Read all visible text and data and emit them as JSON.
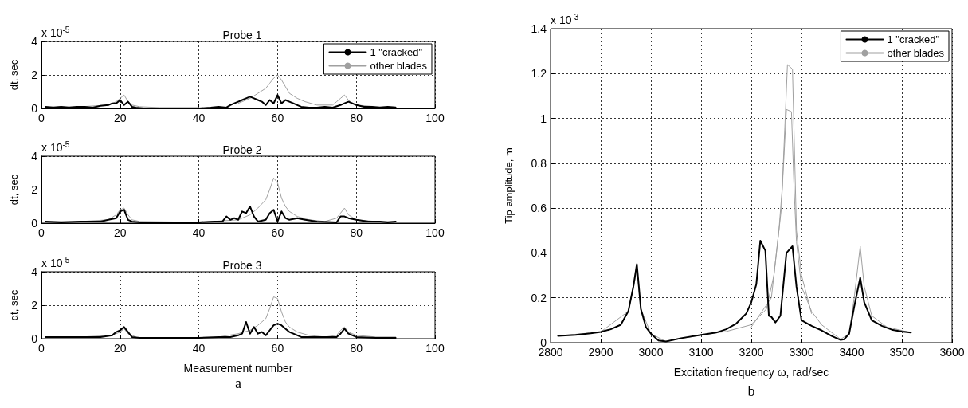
{
  "chart_data": [
    {
      "type": "line",
      "title": "Probe 1",
      "ylabel": "dt, sec",
      "annotations": [
        "x 10$^{-5}$"
      ],
      "xlim": [
        0,
        100
      ],
      "xticks": [
        0,
        20,
        40,
        60,
        80,
        100
      ],
      "ylim": [
        0,
        4
      ],
      "yticks": [
        0,
        2,
        4
      ],
      "grid": true,
      "legend": "top right",
      "marker": "none",
      "line_style": "solid",
      "series": [
        {
          "name": "1 \"cracked\"",
          "color": "#000000",
          "x": [
            1,
            3,
            5,
            7,
            9,
            11,
            13,
            15,
            17,
            18,
            19,
            20,
            21,
            22,
            23,
            24,
            26,
            30,
            35,
            40,
            43,
            45,
            47,
            48,
            49,
            50,
            51,
            52,
            53,
            54,
            55,
            56,
            57,
            58,
            59,
            60,
            61,
            62,
            63,
            64,
            65,
            66,
            68,
            70,
            72,
            74,
            76,
            77,
            78,
            79,
            80,
            82,
            84,
            86,
            88,
            90
          ],
          "values": [
            0.1,
            0.05,
            0.1,
            0.05,
            0.1,
            0.1,
            0.05,
            0.15,
            0.2,
            0.3,
            0.3,
            0.5,
            0.2,
            0.4,
            0.1,
            0.05,
            0,
            0,
            0,
            0,
            0.05,
            0.1,
            0.05,
            0.2,
            0.3,
            0.4,
            0.5,
            0.6,
            0.7,
            0.6,
            0.5,
            0.4,
            0.2,
            0.5,
            0.3,
            0.8,
            0.3,
            0.5,
            0.4,
            0.3,
            0.2,
            0.1,
            0.05,
            0.05,
            0.1,
            0.05,
            0.2,
            0.3,
            0.4,
            0.3,
            0.2,
            0.1,
            0.1,
            0.05,
            0.1,
            0.05
          ]
        },
        {
          "name": "other blades",
          "color": "#a0a0a0",
          "x": [
            1,
            10,
            17,
            19,
            20,
            21,
            22,
            23,
            25,
            30,
            40,
            45,
            50,
            53,
            55,
            57,
            58,
            59,
            60,
            61,
            62,
            63,
            65,
            67,
            70,
            74,
            75,
            76,
            77,
            78,
            79,
            80,
            85,
            90
          ],
          "values": [
            0.1,
            0.1,
            0.2,
            0.4,
            0.6,
            0.8,
            0.4,
            0.2,
            0.1,
            0.05,
            0.05,
            null,
            0.3,
            0.6,
            0.9,
            1.2,
            1.5,
            1.8,
            2.0,
            1.7,
            1.3,
            0.9,
            0.6,
            0.4,
            0.2,
            0.2,
            0.4,
            0.6,
            0.8,
            0.5,
            0.3,
            0.2,
            0.1,
            0.1
          ]
        }
      ]
    },
    {
      "type": "line",
      "title": "Probe 2",
      "ylabel": "dt, sec",
      "annotations": [
        "x 10$^{-5}$"
      ],
      "xlim": [
        0,
        100
      ],
      "xticks": [
        0,
        20,
        40,
        60,
        80,
        100
      ],
      "ylim": [
        0,
        4
      ],
      "yticks": [
        0,
        2,
        4
      ],
      "grid": true,
      "marker": "none",
      "line_style": "solid",
      "series": [
        {
          "color": "#000000",
          "x": [
            1,
            5,
            10,
            15,
            17,
            18,
            19,
            20,
            21,
            22,
            23,
            25,
            30,
            35,
            40,
            44,
            46,
            47,
            48,
            49,
            50,
            51,
            52,
            53,
            54,
            55,
            57,
            58,
            59,
            60,
            61,
            62,
            63,
            65,
            67,
            70,
            75,
            76,
            77,
            78,
            80,
            83,
            86,
            88,
            90
          ],
          "values": [
            0.1,
            0.05,
            0.1,
            0.1,
            0.2,
            0.25,
            0.3,
            0.7,
            0.8,
            0.2,
            0.1,
            0.05,
            0.05,
            0.05,
            0.05,
            0.1,
            0.1,
            0.4,
            0.2,
            0.3,
            0.2,
            0.7,
            0.6,
            1.0,
            0.4,
            0.1,
            0.2,
            0.6,
            0.8,
            0.1,
            0.7,
            0.3,
            0.2,
            0.3,
            0.2,
            0.1,
            0.05,
            0.4,
            0.4,
            0.3,
            0.2,
            0.1,
            0.1,
            0.05,
            0.1
          ]
        },
        {
          "color": "#a0a0a0",
          "x": [
            1,
            10,
            17,
            19,
            20,
            21,
            22,
            23,
            25,
            40,
            50,
            53,
            55,
            57,
            58,
            59,
            60,
            61,
            62,
            63,
            65,
            68,
            72,
            75,
            76,
            77,
            78,
            80,
            85,
            90
          ],
          "values": [
            0.1,
            0.1,
            0.2,
            0.5,
            0.8,
            0.9,
            0.5,
            0.2,
            0.1,
            0.05,
            0.2,
            0.5,
            0.9,
            1.4,
            2.0,
            2.7,
            2.4,
            1.5,
            1.0,
            0.7,
            0.4,
            0.2,
            0.1,
            0.3,
            0.6,
            0.9,
            0.5,
            0.2,
            0.1,
            0.1
          ]
        }
      ]
    },
    {
      "type": "line",
      "title": "Probe 3",
      "xlabel": "Measurement number",
      "ylabel": "dt, sec",
      "annotations": [
        "x 10$^{-5}$",
        "a"
      ],
      "xlim": [
        0,
        100
      ],
      "xticks": [
        0,
        20,
        40,
        60,
        80,
        100
      ],
      "ylim": [
        0,
        4
      ],
      "yticks": [
        0,
        2,
        4
      ],
      "grid": true,
      "marker": "none",
      "line_style": "solid",
      "series": [
        {
          "color": "#000000",
          "x": [
            1,
            5,
            10,
            15,
            18,
            19,
            20,
            21,
            22,
            23,
            25,
            30,
            40,
            45,
            48,
            50,
            51,
            52,
            53,
            54,
            55,
            56,
            57,
            58,
            59,
            60,
            61,
            62,
            63,
            64,
            66,
            70,
            75,
            76,
            77,
            78,
            80,
            85,
            90
          ],
          "values": [
            0.1,
            0.1,
            0.1,
            0.1,
            0.2,
            0.4,
            0.5,
            0.7,
            0.4,
            0.1,
            0.05,
            0.05,
            0.05,
            0.1,
            0.1,
            0.2,
            0.3,
            1.0,
            0.3,
            0.7,
            0.3,
            0.4,
            0.2,
            0.5,
            0.8,
            0.9,
            0.8,
            0.6,
            0.4,
            0.3,
            0.1,
            0.1,
            0.1,
            0.3,
            0.6,
            0.3,
            0.1,
            0.05,
            0.05
          ]
        },
        {
          "color": "#a0a0a0",
          "x": [
            1,
            10,
            18,
            20,
            21,
            22,
            24,
            30,
            45,
            50,
            53,
            55,
            57,
            58,
            59,
            60,
            61,
            62,
            63,
            65,
            68,
            72,
            75,
            76,
            77,
            78,
            80,
            85,
            90
          ],
          "values": [
            0.1,
            0.1,
            0.2,
            0.4,
            0.6,
            0.3,
            0.1,
            null,
            0.1,
            0.3,
            0.5,
            0.8,
            1.2,
            1.8,
            2.5,
            2.4,
            1.6,
            1.0,
            0.7,
            0.4,
            0.2,
            0.1,
            0.2,
            0.5,
            0.7,
            0.4,
            0.2,
            0.1,
            0.1
          ]
        }
      ]
    },
    {
      "type": "line",
      "xlabel": "Excitation frequency ω, rad/sec",
      "ylabel": "Tip amplitude, m",
      "annotations": [
        "x 10$^{-3}$",
        "b"
      ],
      "xlim": [
        2800,
        3600
      ],
      "xticks": [
        2800,
        2900,
        3000,
        3100,
        3200,
        3300,
        3400,
        3500,
        3600
      ],
      "ylim": [
        0,
        1.4
      ],
      "yticks": [
        0,
        0.2,
        0.4,
        0.6,
        0.8,
        1,
        1.2,
        1.4
      ],
      "grid": true,
      "legend": "top right",
      "marker": "none",
      "line_style": "solid",
      "series": [
        {
          "name": "1 \"cracked\"",
          "color": "#000000",
          "x": [
            2815,
            2850,
            2880,
            2900,
            2920,
            2940,
            2955,
            2965,
            2972,
            2980,
            2990,
            3000,
            3015,
            3030,
            3060,
            3100,
            3130,
            3150,
            3170,
            3190,
            3200,
            3210,
            3218,
            3228,
            3235,
            3240,
            3248,
            3258,
            3270,
            3282,
            3290,
            3300,
            3320,
            3340,
            3360,
            3378,
            3385,
            3395,
            3405,
            3417,
            3425,
            3440,
            3460,
            3480,
            3500,
            3518
          ],
          "values": [
            0.03,
            0.035,
            0.042,
            0.048,
            0.06,
            0.08,
            0.14,
            0.25,
            0.35,
            0.15,
            0.07,
            0.04,
            0.01,
            0.005,
            0.02,
            0.035,
            0.045,
            0.06,
            0.085,
            0.13,
            0.18,
            0.26,
            0.455,
            0.41,
            0.12,
            0.115,
            0.09,
            0.12,
            0.4,
            0.43,
            0.25,
            0.1,
            0.075,
            0.055,
            0.03,
            0.012,
            0.015,
            0.04,
            0.16,
            0.29,
            0.18,
            0.1,
            0.075,
            0.058,
            0.05,
            0.045
          ]
        },
        {
          "name": "other blades",
          "color": "#a0a0a0",
          "x": [
            2815,
            2900,
            2955,
            2965,
            2972,
            2980,
            3000,
            3030,
            3100,
            3150,
            3200,
            3230,
            3245,
            3255,
            3262,
            3270,
            3280,
            3285,
            3290,
            3300,
            3320,
            3340,
            3378,
            3395,
            3405,
            3417,
            3425,
            3440,
            3470,
            3518
          ],
          "values": [
            0.03,
            0.048,
            0.14,
            0.24,
            0.33,
            0.15,
            0.04,
            0.005,
            0.035,
            0.05,
            0.08,
            0.15,
            0.3,
            0.5,
            0.7,
            1.04,
            1.03,
            0.7,
            0.45,
            0.25,
            0.14,
            0.08,
            0.015,
            0.04,
            0.2,
            0.43,
            0.25,
            0.12,
            0.07,
            0.045
          ]
        },
        {
          "color": "#a0a0a0",
          "x": [
            3200,
            3240,
            3260,
            3272,
            3282,
            3290,
            3300,
            3320
          ],
          "values": [
            0.07,
            0.2,
            0.6,
            1.24,
            1.22,
            0.5,
            0.3,
            0.13
          ]
        }
      ]
    }
  ]
}
